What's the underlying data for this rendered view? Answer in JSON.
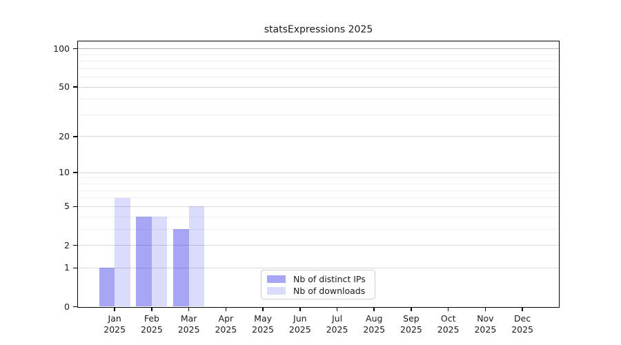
{
  "title": "statsExpressions 2025",
  "chart_data": {
    "type": "bar",
    "title": "statsExpressions 2025",
    "x": {
      "categories": [
        "Jan",
        "Feb",
        "Mar",
        "Apr",
        "May",
        "Jun",
        "Jul",
        "Aug",
        "Sep",
        "Oct",
        "Nov",
        "Dec"
      ],
      "year_label": "2025"
    },
    "y": {
      "scale": "log1p",
      "major_ticks": [
        100,
        50,
        20,
        10,
        5,
        2,
        1,
        0
      ],
      "minor_gridlines": [
        3,
        4,
        6,
        7,
        8,
        9,
        30,
        40,
        60,
        70,
        80,
        90
      ],
      "range": [
        0,
        100
      ]
    },
    "series": [
      {
        "name": "Nb of distinct IPs",
        "values": [
          1,
          4,
          3,
          0,
          0,
          0,
          0,
          0,
          0,
          0,
          0,
          0
        ],
        "color": "#5555eb",
        "alpha": 0.52
      },
      {
        "name": "Nb of downloads",
        "values": [
          6,
          4,
          5,
          0,
          0,
          0,
          0,
          0,
          0,
          0,
          0,
          0
        ],
        "color": "#5555eb",
        "alpha": 0.21
      }
    ],
    "legend": {
      "position": "lower center",
      "entries": [
        "Nb of distinct IPs",
        "Nb of downloads"
      ]
    },
    "grid": true
  },
  "colors": {
    "background": "#ffffff",
    "axis": "#000000",
    "major_grid": "#d6d6d6",
    "top_grid": "#b3b3b3",
    "minor_grid": "#eeeeee",
    "text": "#1a1a1a",
    "legend_border": "#cccccc"
  }
}
